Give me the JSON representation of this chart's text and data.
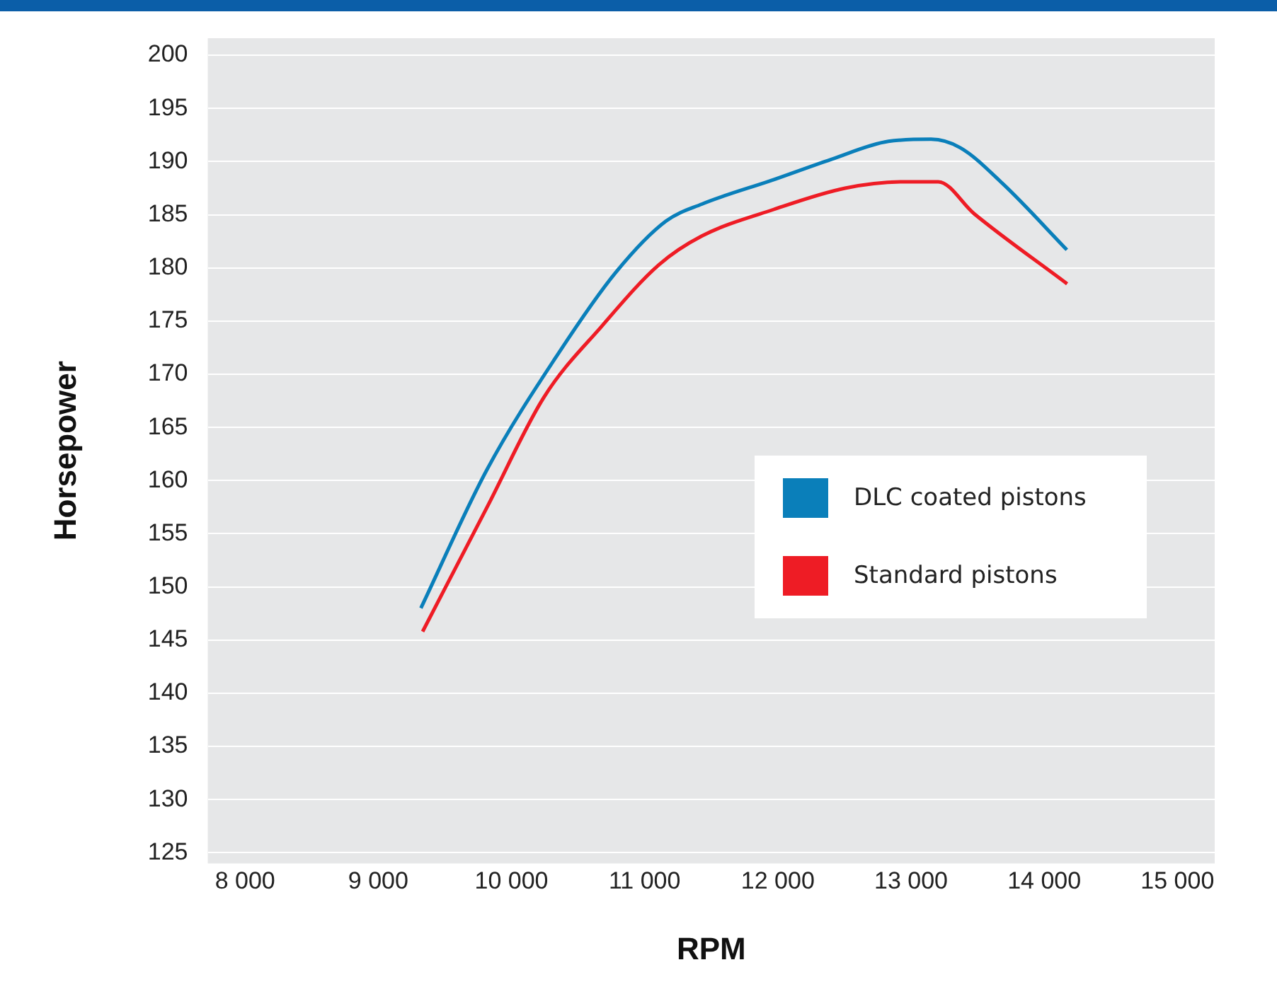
{
  "chart_data": {
    "type": "line",
    "xlabel": "RPM",
    "ylabel": "Horsepower",
    "xlim": [
      7720,
      15280
    ],
    "ylim": [
      124,
      201.6
    ],
    "xticks": [
      {
        "value": 8000,
        "label": "8 000"
      },
      {
        "value": 9000,
        "label": "9 000"
      },
      {
        "value": 10000,
        "label": "10 000"
      },
      {
        "value": 11000,
        "label": "11 000"
      },
      {
        "value": 12000,
        "label": "12 000"
      },
      {
        "value": 13000,
        "label": "13 000"
      },
      {
        "value": 14000,
        "label": "14 000"
      },
      {
        "value": 15000,
        "label": "15 000"
      }
    ],
    "yticks": [
      125,
      130,
      135,
      140,
      145,
      150,
      155,
      160,
      165,
      170,
      175,
      180,
      185,
      190,
      195,
      200
    ],
    "grid": "y",
    "legend": "right",
    "marker": "none",
    "line_style": "solid",
    "series": [
      {
        "name": "DLC coated pistons",
        "color": "#0a7fba",
        "x": [
          9320,
          9815,
          10355,
          10785,
          11160,
          11430,
          11970,
          12400,
          12830,
          13150,
          13370,
          13690,
          14170
        ],
        "values": [
          148,
          161,
          172,
          179.6,
          184.4,
          186,
          188.3,
          190.2,
          191.9,
          192.1,
          191.3,
          187.9,
          181.7
        ]
      },
      {
        "name": "Standard pistons",
        "color": "#ee1c25",
        "x": [
          9333,
          9817,
          10247,
          10677,
          11108,
          11430,
          11970,
          12505,
          12935,
          13204,
          13473,
          14172
        ],
        "values": [
          145.8,
          157.5,
          167.9,
          174.5,
          180.3,
          183,
          185.5,
          187.5,
          188.1,
          188.1,
          185.1,
          178.5
        ]
      }
    ]
  }
}
